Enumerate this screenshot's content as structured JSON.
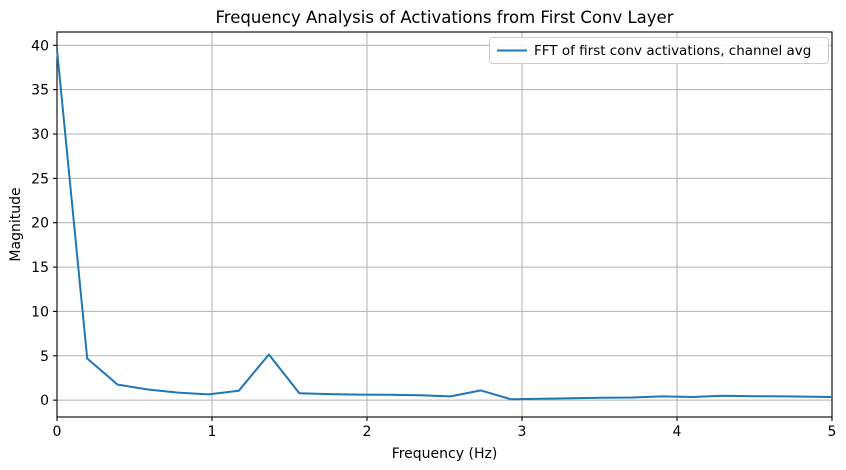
{
  "chart_data": {
    "type": "line",
    "title": "Frequency Analysis of Activations from First Conv Layer",
    "xlabel": "Frequency (Hz)",
    "ylabel": "Magnitude",
    "xlim": [
      0,
      5
    ],
    "ylim": [
      -1.9,
      41.5
    ],
    "xticks": [
      0,
      1,
      2,
      3,
      4,
      5
    ],
    "yticks": [
      0,
      5,
      10,
      15,
      20,
      25,
      30,
      35,
      40
    ],
    "grid": true,
    "grid_color": "#b0b0b0",
    "background_color": "#ffffff",
    "spine_color": "#000000",
    "legend_position": "upper right",
    "series": [
      {
        "name": "FFT of first conv activations, channel avg",
        "color": "#1f77b4",
        "x": [
          0.0,
          0.195,
          0.391,
          0.586,
          0.781,
          0.977,
          1.172,
          1.367,
          1.563,
          1.758,
          1.953,
          2.148,
          2.344,
          2.539,
          2.734,
          2.93,
          3.125,
          3.32,
          3.516,
          3.711,
          3.906,
          4.102,
          4.297,
          4.492,
          4.688,
          4.883,
          5.0
        ],
        "y": [
          39.5,
          4.7,
          1.75,
          1.2,
          0.85,
          0.65,
          1.05,
          5.15,
          0.78,
          0.68,
          0.63,
          0.6,
          0.55,
          0.42,
          1.1,
          0.1,
          0.15,
          0.22,
          0.26,
          0.3,
          0.42,
          0.35,
          0.5,
          0.45,
          0.42,
          0.38,
          0.36
        ]
      }
    ]
  }
}
